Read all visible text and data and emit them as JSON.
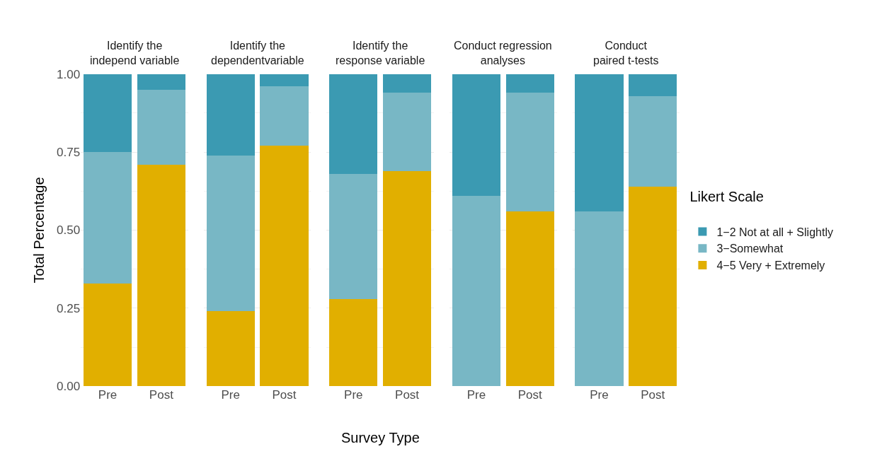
{
  "chart_data": [
    {
      "type": "bar",
      "title": "Identify the\nindepend variable",
      "ylabel": "Total Percentage",
      "legend": "right",
      "legend_title": "Likert Scale",
      "categories": [
        "Pre",
        "Post"
      ],
      "stacked": true,
      "ylim": [
        0,
        1
      ],
      "yticks": [
        {
          "value": 0,
          "label": "0.00"
        },
        {
          "value": 0.25,
          "label": "0.25"
        },
        {
          "value": 0.5,
          "label": "0.50"
        },
        {
          "value": 0.75,
          "label": "0.75"
        },
        {
          "value": 1,
          "label": "1.00"
        }
      ],
      "grid": "y",
      "series": [
        {
          "name": "4−5 Very + Extremely",
          "color": "#e1af00",
          "values": [
            0.33,
            0.71
          ]
        },
        {
          "name": "3−Somewhat",
          "color": "#78b7c5",
          "values": [
            0.42,
            0.24
          ]
        },
        {
          "name": "1−2 Not at all + Slightly",
          "color": "#3b9ab2",
          "values": [
            0.25,
            0.05
          ]
        }
      ]
    },
    {
      "type": "bar",
      "title": "Identify the\ndependentvariable",
      "categories": [
        "Pre",
        "Post"
      ],
      "stacked": true,
      "ylim": [
        0,
        1
      ],
      "yticks": [
        {
          "value": 0,
          "label": null
        },
        {
          "value": 0.25,
          "label": null
        },
        {
          "value": 0.5,
          "label": null
        },
        {
          "value": 0.75,
          "label": null
        },
        {
          "value": 1,
          "label": null
        }
      ],
      "grid": "y",
      "tick_labels": "x",
      "series": [
        {
          "color": "#e1af00",
          "values": [
            0.24,
            0.77
          ]
        },
        {
          "color": "#78b7c5",
          "values": [
            0.5,
            0.19
          ]
        },
        {
          "color": "#3b9ab2",
          "values": [
            0.26,
            0.04
          ]
        }
      ]
    },
    {
      "type": "bar",
      "title": "Identify the\nresponse variable",
      "xlabel": "Survey Type",
      "categories": [
        "Pre",
        "Post"
      ],
      "stacked": true,
      "ylim": [
        0,
        1
      ],
      "yticks": [
        {
          "value": 0,
          "label": null
        },
        {
          "value": 0.25,
          "label": null
        },
        {
          "value": 0.5,
          "label": null
        },
        {
          "value": 0.75,
          "label": null
        },
        {
          "value": 1,
          "label": null
        }
      ],
      "grid": "y",
      "tick_labels": "x",
      "series": [
        {
          "color": "#e1af00",
          "values": [
            0.28,
            0.69
          ]
        },
        {
          "color": "#78b7c5",
          "values": [
            0.4,
            0.25
          ]
        },
        {
          "color": "#3b9ab2",
          "values": [
            0.32,
            0.06
          ]
        }
      ]
    },
    {
      "type": "bar",
      "title": "Conduct regression\nanalyses",
      "categories": [
        "Pre",
        "Post"
      ],
      "stacked": true,
      "ylim": [
        0,
        1
      ],
      "yticks": [
        {
          "value": 0,
          "label": null
        },
        {
          "value": 0.25,
          "label": null
        },
        {
          "value": 0.5,
          "label": null
        },
        {
          "value": 0.75,
          "label": null
        },
        {
          "value": 1,
          "label": null
        }
      ],
      "grid": "y",
      "tick_labels": "x",
      "series": [
        {
          "color": "#e1af00",
          "values": [
            0,
            0.56
          ]
        },
        {
          "color": "#78b7c5",
          "values": [
            0.61,
            0.38
          ]
        },
        {
          "color": "#3b9ab2",
          "values": [
            0.39,
            0.06
          ]
        }
      ]
    },
    {
      "type": "bar",
      "title": "Conduct\npaired t-tests",
      "categories": [
        "Pre",
        "Post"
      ],
      "stacked": true,
      "ylim": [
        0,
        1
      ],
      "yticks": [
        {
          "value": 0,
          "label": null
        },
        {
          "value": 0.25,
          "label": null
        },
        {
          "value": 0.5,
          "label": null
        },
        {
          "value": 0.75,
          "label": null
        },
        {
          "value": 1,
          "label": null
        }
      ],
      "grid": "y",
      "tick_labels": "x",
      "series": [
        {
          "color": "#e1af00",
          "values": [
            0,
            0.64
          ]
        },
        {
          "color": "#78b7c5",
          "values": [
            0.56,
            0.29
          ]
        },
        {
          "color": "#3b9ab2",
          "values": [
            0.44,
            0.07
          ]
        }
      ]
    }
  ]
}
